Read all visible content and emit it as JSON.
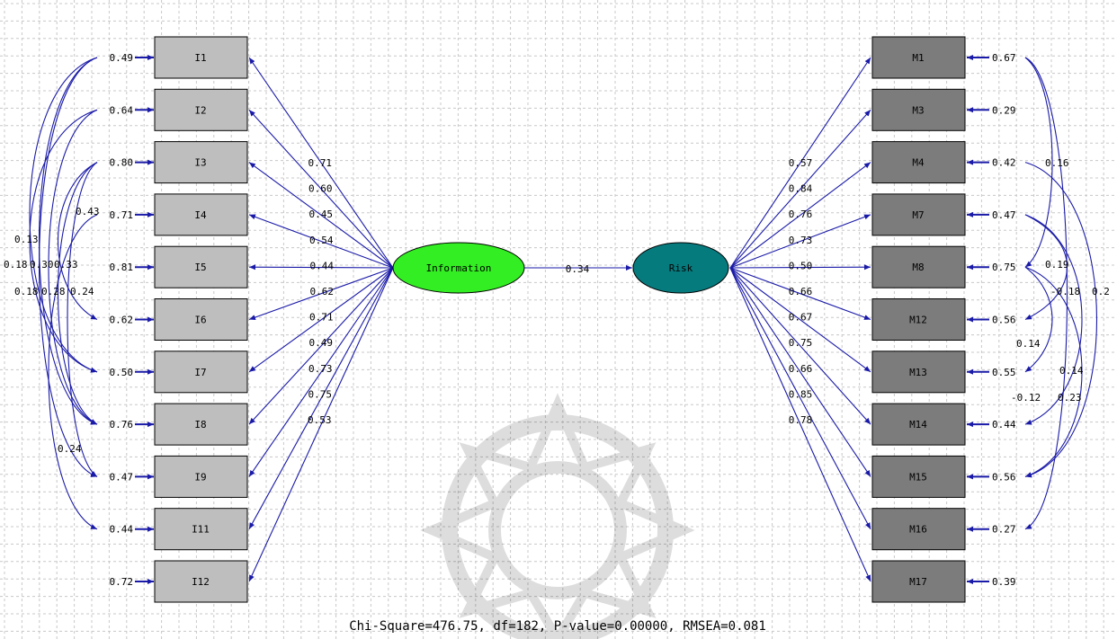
{
  "latent": {
    "information": {
      "label": "Information",
      "fill": "#33ee22"
    },
    "risk": {
      "label": "Risk",
      "fill": "#067b7e"
    },
    "structural_path": "0.34"
  },
  "colors": {
    "left_box": "#bebebe",
    "right_box": "#7c7c7c",
    "arrow": "#1a1aa8"
  },
  "left_indicators": [
    {
      "name": "I1",
      "loading": "0.71",
      "error": "0.49"
    },
    {
      "name": "I2",
      "loading": "0.60",
      "error": "0.64"
    },
    {
      "name": "I3",
      "loading": "0.45",
      "error": "0.80"
    },
    {
      "name": "I4",
      "loading": "0.54",
      "error": "0.71"
    },
    {
      "name": "I5",
      "loading": "0.44",
      "error": "0.81"
    },
    {
      "name": "I6",
      "loading": "0.62",
      "error": "0.62"
    },
    {
      "name": "I7",
      "loading": "0.71",
      "error": "0.50"
    },
    {
      "name": "I8",
      "loading": "0.49",
      "error": "0.76"
    },
    {
      "name": "I9",
      "loading": "0.73",
      "error": "0.47"
    },
    {
      "name": "I11",
      "loading": "0.75",
      "error": "0.44"
    },
    {
      "name": "I12",
      "loading": "0.53",
      "error": "0.72"
    }
  ],
  "right_indicators": [
    {
      "name": "M1",
      "loading": "0.57",
      "error": "0.67"
    },
    {
      "name": "M3",
      "loading": "0.84",
      "error": "0.29"
    },
    {
      "name": "M4",
      "loading": "0.76",
      "error": "0.42"
    },
    {
      "name": "M7",
      "loading": "0.73",
      "error": "0.47"
    },
    {
      "name": "M8",
      "loading": "0.50",
      "error": "0.75"
    },
    {
      "name": "M12",
      "loading": "0.66",
      "error": "0.56"
    },
    {
      "name": "M13",
      "loading": "0.67",
      "error": "0.55"
    },
    {
      "name": "M14",
      "loading": "0.75",
      "error": "0.44"
    },
    {
      "name": "M15",
      "loading": "0.66",
      "error": "0.56"
    },
    {
      "name": "M16",
      "loading": "0.85",
      "error": "0.27"
    },
    {
      "name": "M17",
      "loading": "0.78",
      "error": "0.39"
    }
  ],
  "left_covariances": [
    "0.13",
    "0.18",
    "0.30",
    "0.33",
    "0.43",
    "0.18",
    "0.28",
    "0.24",
    "0.24"
  ],
  "right_covariances": [
    "0.16",
    "0.19",
    "-0.18",
    "0.2",
    "0.14",
    "0.14",
    "-0.12",
    "0.23"
  ],
  "footer": "Chi-Square=476.75, df=182, P-value=0.00000, RMSEA=0.081"
}
